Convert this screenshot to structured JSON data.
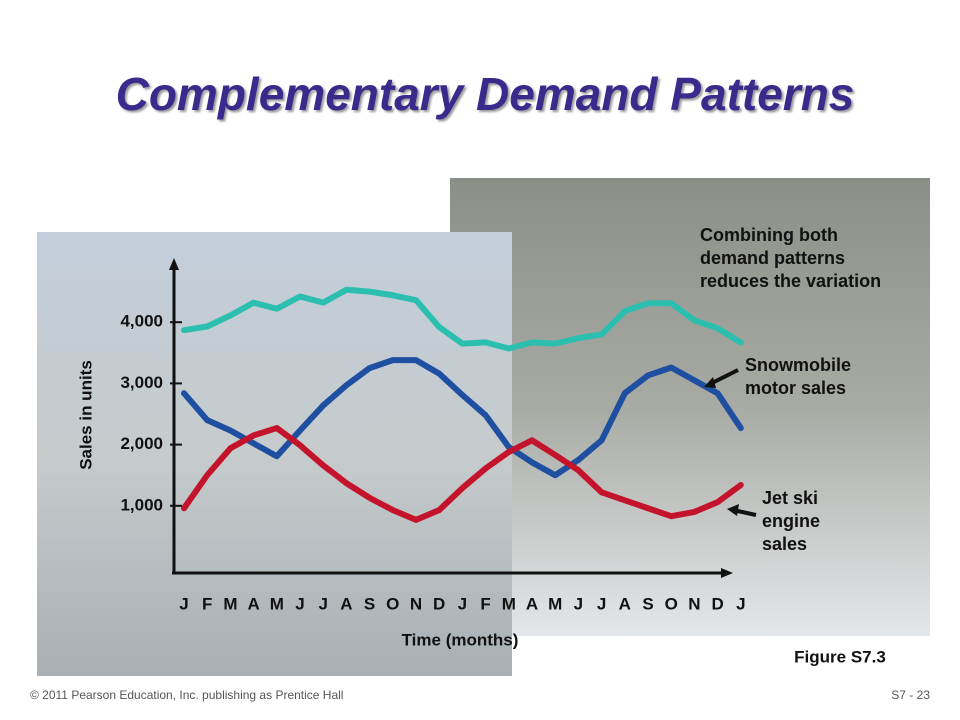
{
  "chart_data": {
    "type": "line",
    "title": "Complementary Demand Patterns",
    "y_label": "Sales in units",
    "x_label": "Time (months)",
    "figure_label": "Figure S7.3",
    "footer_left": "© 2011 Pearson Education, Inc. publishing as Prentice Hall",
    "footer_right": "S7 - 23",
    "categories": [
      "J",
      "F",
      "M",
      "A",
      "M",
      "J",
      "J",
      "A",
      "S",
      "O",
      "N",
      "D",
      "J",
      "F",
      "M",
      "A",
      "M",
      "J",
      "J",
      "A",
      "S",
      "O",
      "N",
      "D",
      "J"
    ],
    "ylim": [
      0,
      5000
    ],
    "yticks": [
      {
        "value": 1000,
        "label": "1,000"
      },
      {
        "value": 2000,
        "label": "2,000"
      },
      {
        "value": 3000,
        "label": "3,000"
      },
      {
        "value": 4000,
        "label": "4,000"
      }
    ],
    "series": [
      {
        "name": "Combining both demand patterns reduces the variation",
        "color": "#2cbfb0",
        "values": [
          3870,
          3930,
          4110,
          4320,
          4220,
          4420,
          4320,
          4530,
          4500,
          4440,
          4360,
          3920,
          3650,
          3670,
          3570,
          3670,
          3650,
          3740,
          3800,
          4180,
          4310,
          4310,
          4030,
          3900,
          3670
        ]
      },
      {
        "name": "Snowmobile motor sales",
        "color": "#1f4fa0",
        "values": [
          2840,
          2400,
          2230,
          2020,
          1810,
          2230,
          2640,
          2970,
          3250,
          3380,
          3380,
          3160,
          2810,
          2480,
          1960,
          1710,
          1500,
          1750,
          2070,
          2840,
          3130,
          3260,
          3050,
          2840,
          2270
        ]
      },
      {
        "name": "Jet ski engine sales",
        "color": "#c4142c",
        "values": [
          960,
          1500,
          1940,
          2150,
          2270,
          1990,
          1660,
          1370,
          1130,
          930,
          770,
          930,
          1290,
          1610,
          1880,
          2070,
          1830,
          1580,
          1220,
          1090,
          960,
          830,
          900,
          1060,
          1340
        ]
      }
    ]
  }
}
